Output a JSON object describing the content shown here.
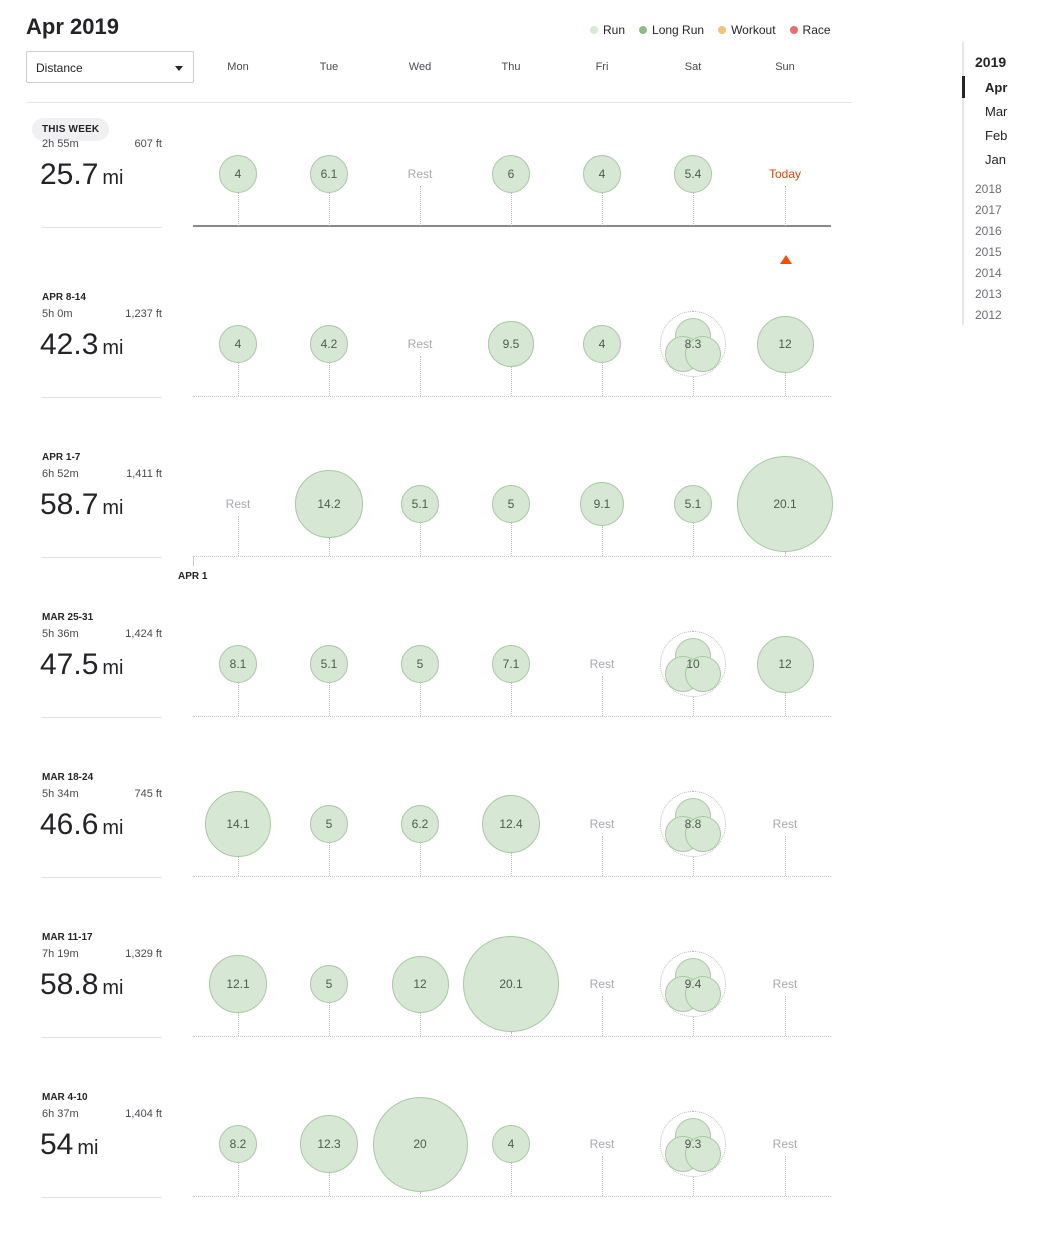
{
  "title": "Apr 2019",
  "legend": [
    {
      "label": "Run",
      "color": "#d6e8d3"
    },
    {
      "label": "Long Run",
      "color": "#8ebc88"
    },
    {
      "label": "Workout",
      "color": "#f5c07a"
    },
    {
      "label": "Race",
      "color": "#ee6b6b"
    }
  ],
  "metric_select": {
    "value": "Distance"
  },
  "day_headers": [
    "Mon",
    "Tue",
    "Wed",
    "Thu",
    "Fri",
    "Sat",
    "Sun"
  ],
  "unit": "mi",
  "rest_label": "Rest",
  "today_label": "Today",
  "this_week_badge": "THIS WEEK",
  "month_marker": "APR 1",
  "weeks": [
    {
      "label": "",
      "current": true,
      "time": "2h 55m",
      "elevation": "607 ft",
      "total": "25.7",
      "days": [
        {
          "v": "4",
          "d": 4
        },
        {
          "v": "6.1",
          "d": 6.1
        },
        {
          "rest": true
        },
        {
          "v": "6",
          "d": 6
        },
        {
          "v": "4",
          "d": 4
        },
        {
          "v": "5.4",
          "d": 5.4
        },
        {
          "today": true
        }
      ]
    },
    {
      "label": "APR 8-14",
      "time": "5h 0m",
      "elevation": "1,237 ft",
      "total": "42.3",
      "days": [
        {
          "v": "4",
          "d": 4
        },
        {
          "v": "4.2",
          "d": 4.2
        },
        {
          "rest": true
        },
        {
          "v": "9.5",
          "d": 9.5
        },
        {
          "v": "4",
          "d": 4
        },
        {
          "v": "8.3",
          "d": 8.3,
          "multi": true
        },
        {
          "v": "12",
          "d": 12
        }
      ]
    },
    {
      "label": "APR 1-7",
      "time": "6h 52m",
      "elevation": "1,411 ft",
      "total": "58.7",
      "days": [
        {
          "rest": true
        },
        {
          "v": "14.2",
          "d": 14.2
        },
        {
          "v": "5.1",
          "d": 5.1
        },
        {
          "v": "5",
          "d": 5
        },
        {
          "v": "9.1",
          "d": 9.1
        },
        {
          "v": "5.1",
          "d": 5.1
        },
        {
          "v": "20.1",
          "d": 20.1
        }
      ]
    },
    {
      "label": "MAR 25-31",
      "time": "5h 36m",
      "elevation": "1,424 ft",
      "total": "47.5",
      "days": [
        {
          "v": "8.1",
          "d": 8.1
        },
        {
          "v": "5.1",
          "d": 5.1
        },
        {
          "v": "5",
          "d": 5
        },
        {
          "v": "7.1",
          "d": 7.1
        },
        {
          "rest": true
        },
        {
          "v": "10",
          "d": 10,
          "multi": true
        },
        {
          "v": "12",
          "d": 12
        }
      ]
    },
    {
      "label": "MAR 18-24",
      "time": "5h 34m",
      "elevation": "745 ft",
      "total": "46.6",
      "days": [
        {
          "v": "14.1",
          "d": 14.1
        },
        {
          "v": "5",
          "d": 5
        },
        {
          "v": "6.2",
          "d": 6.2
        },
        {
          "v": "12.4",
          "d": 12.4
        },
        {
          "rest": true
        },
        {
          "v": "8.8",
          "d": 8.8,
          "multi": true
        },
        {
          "rest": true
        }
      ]
    },
    {
      "label": "MAR 11-17",
      "time": "7h 19m",
      "elevation": "1,329 ft",
      "total": "58.8",
      "days": [
        {
          "v": "12.1",
          "d": 12.1
        },
        {
          "v": "5",
          "d": 5
        },
        {
          "v": "12",
          "d": 12
        },
        {
          "v": "20.1",
          "d": 20.1
        },
        {
          "rest": true
        },
        {
          "v": "9.4",
          "d": 9.4,
          "multi": true
        },
        {
          "rest": true
        }
      ]
    },
    {
      "label": "MAR 4-10",
      "time": "6h 37m",
      "elevation": "1,404 ft",
      "total": "54",
      "days": [
        {
          "v": "8.2",
          "d": 8.2
        },
        {
          "v": "12.3",
          "d": 12.3
        },
        {
          "v": "20",
          "d": 20
        },
        {
          "v": "4",
          "d": 4
        },
        {
          "rest": true
        },
        {
          "v": "9.3",
          "d": 9.3,
          "multi": true
        },
        {
          "rest": true
        }
      ]
    }
  ],
  "timeline": {
    "current_year": "2019",
    "months": [
      "Apr",
      "Mar",
      "Feb",
      "Jan"
    ],
    "selected_month": "Apr",
    "years": [
      "2018",
      "2017",
      "2016",
      "2015",
      "2014",
      "2013",
      "2012"
    ]
  }
}
